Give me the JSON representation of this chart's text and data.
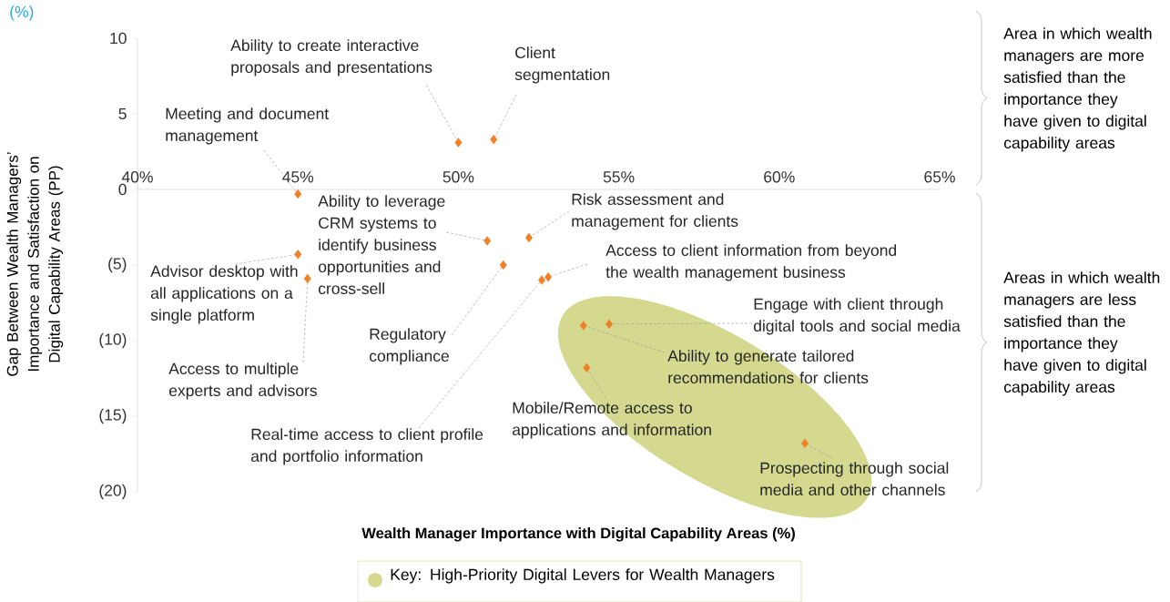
{
  "chart_data": {
    "type": "scatter",
    "xlabel": "Wealth Manager Importance with Digital Capability Areas (%)",
    "ylabel": "Gap Between Wealth Managers’ Importance and  Satisfaction on Digital Capability Areas (PP)",
    "x": [
      45.0,
      50.0,
      51.1,
      45.0,
      45.3,
      50.9,
      52.2,
      51.4,
      52.6,
      52.8,
      54.7,
      53.9,
      54.0,
      60.8
    ],
    "values": [
      -0.3,
      3.1,
      3.3,
      -4.3,
      -5.9,
      -3.4,
      -3.2,
      -5.0,
      -6.0,
      -5.8,
      -8.9,
      -9.0,
      -11.8,
      -16.8
    ],
    "color": "#f07f26",
    "marker": "diamond",
    "xlim": [
      40,
      65
    ],
    "xticks": [
      {
        "value": 40,
        "label": "40%"
      },
      {
        "value": 45,
        "label": "45%"
      },
      {
        "value": 50,
        "label": "50%"
      },
      {
        "value": 55,
        "label": "55%"
      },
      {
        "value": 60,
        "label": "60%"
      },
      {
        "value": 65,
        "label": "65%"
      }
    ],
    "ylim": [
      -20,
      10
    ],
    "yticks": [
      10,
      5,
      0,
      {
        "value": -5,
        "label": "(5)"
      },
      {
        "value": -10,
        "label": "(10)"
      },
      {
        "value": -15,
        "label": "(15)"
      },
      {
        "value": -20,
        "label": "(20)"
      }
    ],
    "annotations": [
      {
        "text": "Meeting and document management",
        "x": 45.0,
        "y": -0.3
      },
      {
        "text": "Ability to create interactive proposals and presentations",
        "x": 50.0,
        "y": 3.1
      },
      {
        "text": "Client segmentation",
        "x": 51.1,
        "y": 3.3
      },
      {
        "text": "Advisor desktop with all applications on a single platform",
        "x": 45.0,
        "y": -4.3
      },
      {
        "text": "Access to multiple experts and advisors",
        "x": 45.3,
        "y": -5.9
      },
      {
        "text": "Ability to leverage CRM systems to identify business opportunities and cross-sell",
        "x": 50.9,
        "y": -3.4
      },
      {
        "text": "Risk assessment and management for clients",
        "x": 52.2,
        "y": -3.2
      },
      {
        "text": "Regulatory compliance",
        "x": 51.4,
        "y": -5.0
      },
      {
        "text": "Real-time access to client profile and portfolio information",
        "x": 52.6,
        "y": -6.0
      },
      {
        "text": "Access to client information from beyond the wealth management business",
        "x": 52.8,
        "y": -5.8
      },
      {
        "text": "Engage with client through digital tools and social media",
        "x": 54.7,
        "y": -8.9
      },
      {
        "text": "Ability to generate tailored recommendations for clients",
        "x": 53.9,
        "y": -9.0
      },
      {
        "text": "Mobile/Remote access to applications and information",
        "x": 54.0,
        "y": -11.8
      },
      {
        "text": "Prospecting through social media and other channels",
        "x": 60.8,
        "y": -16.8
      },
      "(%)",
      "Area in which wealth managers are more satisfied than the importance they have given to digital capability areas",
      "Areas in which wealth managers are less satisfied than the importance they have given to digital capability areas",
      "Key: High-Priority Digital Levers for Wealth Managers"
    ]
  }
}
